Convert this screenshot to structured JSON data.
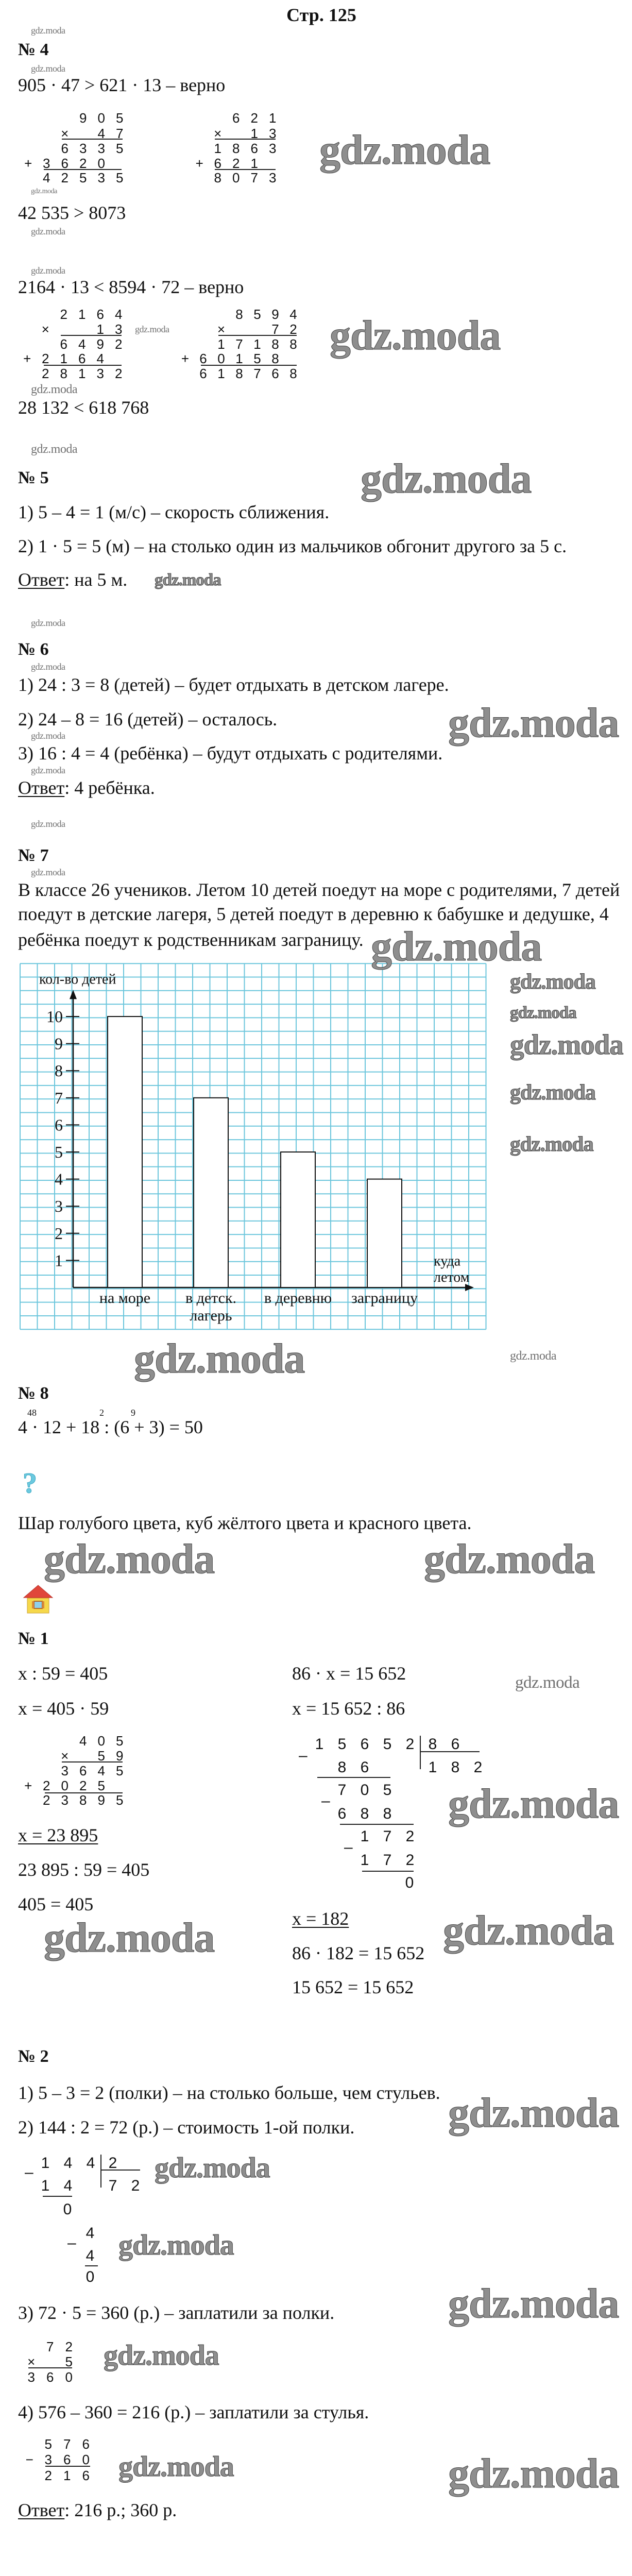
{
  "page_title": "Стр. 125",
  "watermark": "gdz.moda",
  "minus_sign": "–",
  "task4": {
    "heading": "№ 4",
    "line1": "905 · 47 > 621 · 13 – верно",
    "calc1": {
      "rows": [
        "905",
        "× 47",
        "6335",
        "+3620 ",
        "42535"
      ]
    },
    "calc2": {
      "rows": [
        "621",
        "× 13",
        "1863",
        "+621 ",
        "8073"
      ]
    },
    "result1": "42 535 > 8073",
    "line2": "2164 · 13 < 8594 · 72 – верно",
    "calc3": {
      "rows": [
        "2164",
        "×  13",
        "6492",
        "+2164 ",
        "28132"
      ]
    },
    "calc4": {
      "rows": [
        "8594",
        "×  72",
        "17188",
        "+60158 ",
        "618768"
      ]
    },
    "result2": "28 132 < 618 768"
  },
  "task5": {
    "heading": "№ 5",
    "step1": "1) 5 – 4 = 1 (м/с) – скорость сближения.",
    "step2": "2) 1 · 5 = 5 (м) – на столько один из мальчиков обгонит другого за 5 с.",
    "answer_label": "Ответ",
    "answer_text": ": на 5 м."
  },
  "task6": {
    "heading": "№ 6",
    "step1": "1) 24 : 3 = 8 (детей) – будет отдыхать в детском лагере.",
    "step2": "2) 24 – 8 = 16 (детей) – осталось.",
    "step3": "3) 16 : 4 = 4 (ребёнка) – будут отдыхать с родителями.",
    "answer_label": "Ответ",
    "answer_text": ": 4 ребёнка."
  },
  "task7": {
    "heading": "№ 7",
    "text_lines": [
      "В классе 26 учеников. Летом 10 детей поедут на море с родителями, 7 детей",
      "поедут в детские лагеря, 5 детей поедут в деревню к бабушке и дедушке, 4",
      "ребёнка поедут к родственникам заграницу."
    ]
  },
  "chart_data": {
    "type": "bar",
    "categories": [
      "на море",
      "в детск. лагерь",
      "в деревню",
      "заграницу"
    ],
    "category_lines": [
      [
        "на море"
      ],
      [
        "в детск.",
        "лагерь"
      ],
      [
        "в деревню"
      ],
      [
        "заграницу"
      ]
    ],
    "values": [
      10,
      7,
      5,
      4
    ],
    "ylabel": "кол-во детей",
    "xlabel": [
      "куда",
      "летом"
    ],
    "yticks": [
      1,
      2,
      3,
      4,
      5,
      6,
      7,
      8,
      9,
      10
    ],
    "ylim": [
      0,
      10
    ],
    "grid": true,
    "grid_color": "#6cc6dc",
    "bar_fill": "#ffffff",
    "bar_stroke": "#111111"
  },
  "task8": {
    "heading": "№ 8",
    "order_marks": [
      "48",
      "2",
      "9"
    ],
    "equation": "4 · 12 + 18 : (6 + 3) = 50"
  },
  "question": {
    "icon": "question-mark-icon",
    "icon_color": "#6cc9df",
    "glyph": "?",
    "text": "Шар голубого цвета, куб жёлтого цвета и красного цвета."
  },
  "home": {
    "icon": "house-icon"
  },
  "hw1": {
    "heading": "№ 1",
    "left": {
      "eq": "x : 59 = 405",
      "step": "x = 405 · 59",
      "calc": {
        "rows": [
          "405",
          "× 59",
          "3645",
          "+2025 ",
          "23895"
        ]
      },
      "result": "x = 23 895",
      "check": "23 895 : 59 = 405",
      "check_result": "405 = 405"
    },
    "right": {
      "eq": "86 · x = 15 652",
      "step": "x = 15 652 : 86",
      "division": {
        "dividend": "15652",
        "divisor": "86",
        "quotient": "182",
        "steps": [
          "86",
          "705",
          "688",
          "172",
          "172",
          "0"
        ]
      },
      "result": "x = 182",
      "check": "86 · 182 = 15 652",
      "check_result": "15 652 = 15 652"
    }
  },
  "hw2": {
    "heading": "№ 2",
    "step1": "1) 5 – 3 = 2 (полки) – на столько больше, чем стульев.",
    "step2": "2) 144 : 2 = 72 (р.) – стоимость 1-ой полки.",
    "division": {
      "dividend": "144",
      "divisor": "2",
      "quotient": "72",
      "steps": [
        "14",
        "0",
        "4",
        "4",
        "0"
      ]
    },
    "step3": "3) 72 · 5 = 360 (р.) – заплатили за полки.",
    "calc3": {
      "rows": [
        "72",
        "× 5",
        "360"
      ]
    },
    "step4": "4) 576 – 360 = 216 (р.) – заплатили за стулья.",
    "calc4": {
      "rows": [
        "576",
        "−360",
        "216"
      ]
    },
    "answer_label": "Ответ",
    "answer_text": ": 216 р.;  360 р."
  }
}
